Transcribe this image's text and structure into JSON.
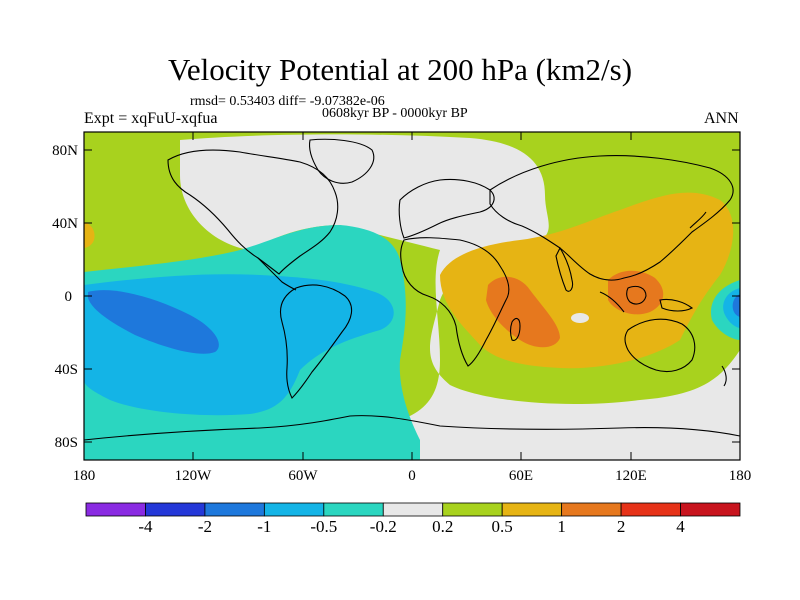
{
  "title": "Velocity Potential at 200 hPa (km2/s)",
  "stats": "rmsd= 0.53403 diff= -9.07382e-06",
  "period": "0608kyr BP - 0000kyr BP",
  "experiment": "Expt = xqFuU-xqfua",
  "season": "ANN",
  "lat_ticks": [
    "80N",
    "40N",
    "0",
    "40S",
    "80S"
  ],
  "lon_ticks": [
    "180",
    "120W",
    "60W",
    "0",
    "60E",
    "120E",
    "180"
  ],
  "colorbar": {
    "labels": [
      "-4",
      "-2",
      "-1",
      "-0.5",
      "-0.2",
      "0.2",
      "0.5",
      "1",
      "2",
      "4"
    ],
    "colors": [
      "#8a2be2",
      "#2438d8",
      "#1e78dc",
      "#14b4e6",
      "#2bd6c0",
      "#e8e8e8",
      "#a8d21e",
      "#e6b414",
      "#e6781e",
      "#e63218",
      "#c8141e"
    ]
  },
  "colors": {
    "ocean_positive": "#a8d21e",
    "neutral": "#e8e8e8",
    "cyan": "#2bd6c0",
    "light_blue": "#14b4e6",
    "mid_blue": "#1e78dc",
    "yellow": "#e6b414",
    "orange": "#e6781e",
    "red": "#e63218"
  }
}
